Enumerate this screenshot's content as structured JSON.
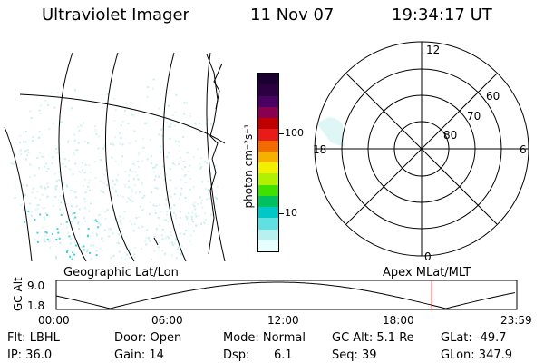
{
  "header": {
    "instrument": "Ultraviolet Imager",
    "date": "11 Nov 07",
    "time": "19:34:17 UT"
  },
  "colorbar": {
    "label": "photon cm⁻²s⁻¹",
    "ticks": [
      "100",
      "10"
    ],
    "colors": [
      "#1a0030",
      "#2a0040",
      "#4a0060",
      "#8a0050",
      "#c00000",
      "#e81a1a",
      "#f26a00",
      "#f5b000",
      "#f0f000",
      "#b0f000",
      "#40e000",
      "#00c060",
      "#00c8c8",
      "#60e0e0",
      "#b8f0f0",
      "#e8ffff"
    ]
  },
  "polar_plot": {
    "mlt_labels": {
      "top": "12",
      "bottom": "0",
      "left": "18",
      "right": "6"
    },
    "lat_labels": [
      "60",
      "70",
      "80"
    ]
  },
  "image_caption_left": "Geographic Lat/Lon",
  "image_caption_right": "Apex MLat/MLT",
  "altitude_plot": {
    "ylabel": "GC Alt",
    "yticks": [
      "9.0",
      "1.8"
    ],
    "xticks": [
      "00:00",
      "06:00",
      "12:00",
      "18:00",
      "23:59"
    ],
    "current_time_marker_hour": 19.57
  },
  "info": {
    "flt": "Flt: LBHL",
    "ip": "IP: 36.0",
    "door": "Door: Open",
    "gain": "Gain: 14",
    "mode": "Mode: Normal",
    "dsp_label": "Dsp:",
    "dsp_value": "6.1",
    "gc_alt": "GC Alt: 5.1 Re",
    "seq": "Seq: 39",
    "glat": "GLat: -49.7",
    "glon": "GLon: 347.9"
  }
}
